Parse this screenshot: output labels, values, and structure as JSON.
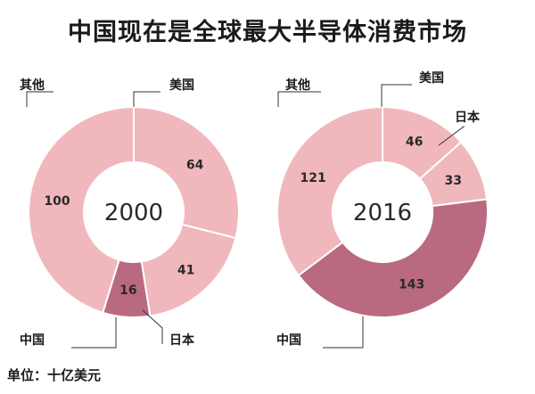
{
  "title": "中国现在是全球最大半导体消费市场",
  "unit_note": "单位：十亿美元",
  "chart_data": {
    "type": "pie",
    "style": "donut",
    "title": "中国现在是全球最大半导体消费市场",
    "unit": "单位：十亿美元",
    "charts": [
      {
        "center_label": "2000",
        "categories": [
          "美国",
          "日本",
          "中国",
          "其他"
        ],
        "values": [
          64,
          41,
          16,
          100
        ],
        "colors": [
          "#f0b8bd",
          "#f0b8bd",
          "#b96a80",
          "#f0b8bd"
        ]
      },
      {
        "center_label": "2016",
        "categories": [
          "美国",
          "日本",
          "中国",
          "其他"
        ],
        "values": [
          46,
          33,
          143,
          121
        ],
        "colors": [
          "#f0b8bd",
          "#f0b8bd",
          "#b96a80",
          "#f0b8bd"
        ]
      }
    ]
  }
}
